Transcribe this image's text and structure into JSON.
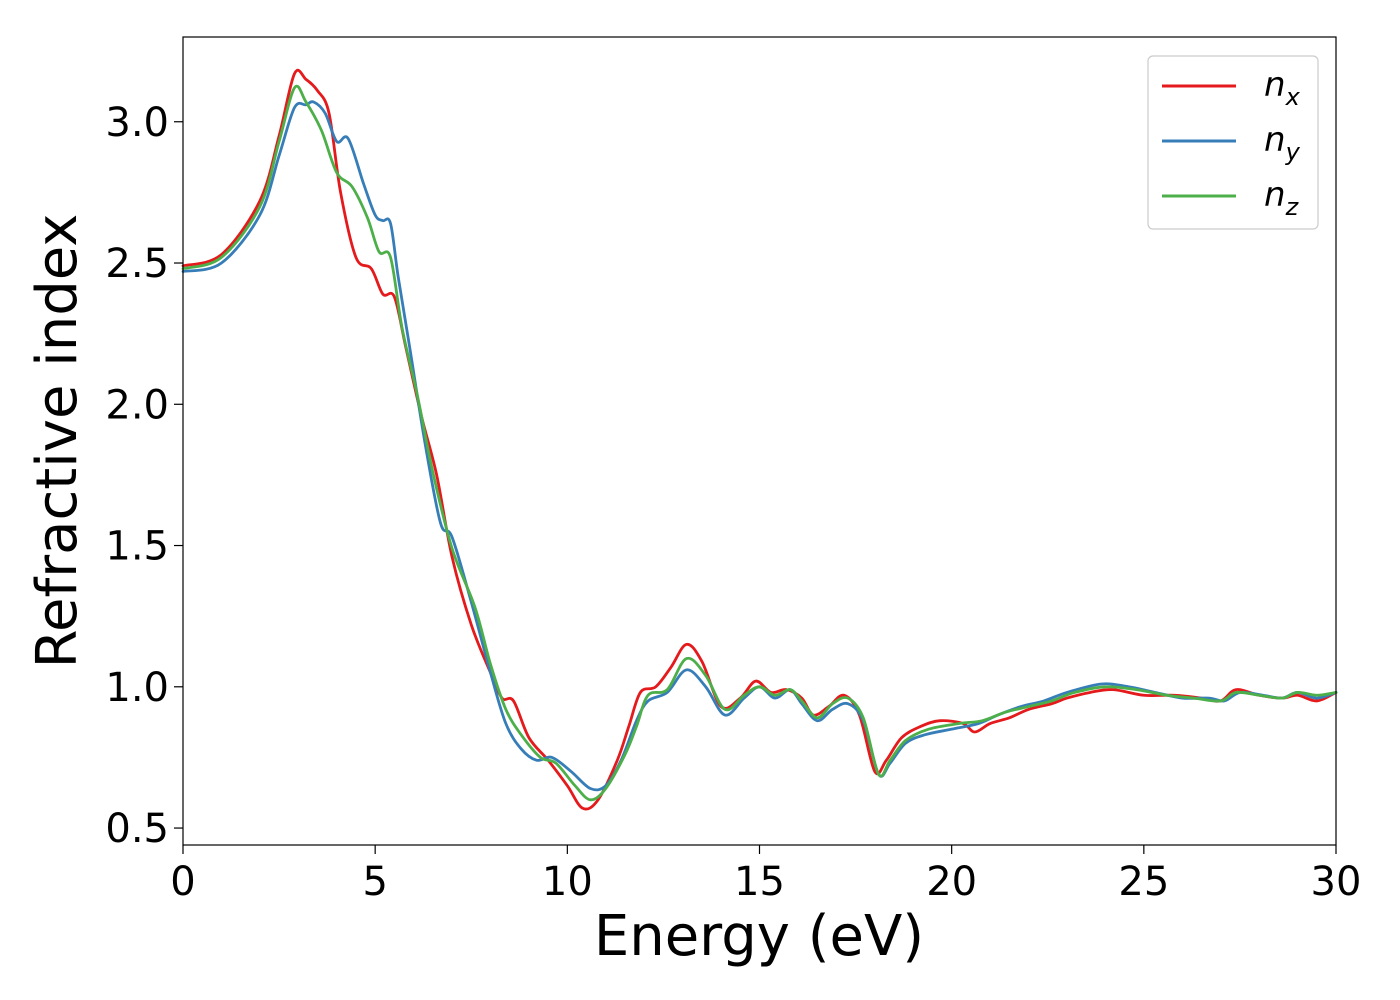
{
  "chart_data": {
    "type": "line",
    "xlabel": "Energy (eV)",
    "ylabel": "Refractive index",
    "xlim": [
      0,
      30
    ],
    "ylim": [
      0.44,
      3.3
    ],
    "xticks": [
      0,
      5,
      10,
      15,
      20,
      25,
      30
    ],
    "xtick_labels": [
      "0",
      "5",
      "10",
      "15",
      "20",
      "25",
      "30"
    ],
    "yticks": [
      0.5,
      1.0,
      1.5,
      2.0,
      2.5,
      3.0
    ],
    "ytick_labels": [
      "0.5",
      "1.0",
      "1.5",
      "2.0",
      "2.5",
      "3.0"
    ],
    "grid": false,
    "legend_position": "top-right",
    "series": [
      {
        "name": "n_x",
        "legend_main": "n",
        "legend_sub": "x",
        "color": "#e41a1c",
        "points": [
          [
            0,
            2.49
          ],
          [
            1,
            2.53
          ],
          [
            2,
            2.72
          ],
          [
            2.5,
            2.95
          ],
          [
            2.9,
            3.17
          ],
          [
            3.2,
            3.15
          ],
          [
            3.5,
            3.11
          ],
          [
            3.8,
            3.03
          ],
          [
            4.1,
            2.75
          ],
          [
            4.5,
            2.52
          ],
          [
            4.9,
            2.48
          ],
          [
            5.2,
            2.39
          ],
          [
            5.5,
            2.38
          ],
          [
            5.8,
            2.2
          ],
          [
            6.2,
            1.96
          ],
          [
            6.6,
            1.75
          ],
          [
            7,
            1.46
          ],
          [
            7.5,
            1.22
          ],
          [
            8,
            1.05
          ],
          [
            8.3,
            0.96
          ],
          [
            8.6,
            0.95
          ],
          [
            9,
            0.82
          ],
          [
            9.5,
            0.74
          ],
          [
            10,
            0.65
          ],
          [
            10.4,
            0.57
          ],
          [
            10.8,
            0.6
          ],
          [
            11.3,
            0.74
          ],
          [
            11.6,
            0.86
          ],
          [
            11.9,
            0.98
          ],
          [
            12.3,
            1.0
          ],
          [
            12.7,
            1.07
          ],
          [
            13.1,
            1.15
          ],
          [
            13.5,
            1.09
          ],
          [
            14,
            0.93
          ],
          [
            14.5,
            0.96
          ],
          [
            14.9,
            1.02
          ],
          [
            15.3,
            0.98
          ],
          [
            15.7,
            0.99
          ],
          [
            16.1,
            0.96
          ],
          [
            16.4,
            0.9
          ],
          [
            16.8,
            0.93
          ],
          [
            17.2,
            0.97
          ],
          [
            17.6,
            0.9
          ],
          [
            18,
            0.7
          ],
          [
            18.3,
            0.74
          ],
          [
            18.7,
            0.82
          ],
          [
            19.2,
            0.86
          ],
          [
            19.7,
            0.88
          ],
          [
            20.3,
            0.87
          ],
          [
            20.6,
            0.84
          ],
          [
            21,
            0.87
          ],
          [
            21.5,
            0.89
          ],
          [
            22,
            0.92
          ],
          [
            22.6,
            0.94
          ],
          [
            23,
            0.96
          ],
          [
            23.6,
            0.98
          ],
          [
            24.2,
            0.99
          ],
          [
            25,
            0.97
          ],
          [
            25.8,
            0.97
          ],
          [
            26.5,
            0.96
          ],
          [
            27,
            0.95
          ],
          [
            27.4,
            0.99
          ],
          [
            28,
            0.97
          ],
          [
            28.6,
            0.96
          ],
          [
            29,
            0.97
          ],
          [
            29.5,
            0.95
          ],
          [
            30,
            0.98
          ]
        ]
      },
      {
        "name": "n_y",
        "legend_main": "n",
        "legend_sub": "y",
        "color": "#377eb8",
        "points": [
          [
            0,
            2.47
          ],
          [
            1,
            2.5
          ],
          [
            2,
            2.67
          ],
          [
            2.5,
            2.88
          ],
          [
            2.9,
            3.05
          ],
          [
            3.2,
            3.06
          ],
          [
            3.4,
            3.07
          ],
          [
            3.7,
            3.03
          ],
          [
            4,
            2.93
          ],
          [
            4.3,
            2.94
          ],
          [
            4.7,
            2.78
          ],
          [
            5,
            2.67
          ],
          [
            5.2,
            2.65
          ],
          [
            5.4,
            2.64
          ],
          [
            5.6,
            2.45
          ],
          [
            5.9,
            2.2
          ],
          [
            6.3,
            1.86
          ],
          [
            6.7,
            1.58
          ],
          [
            7,
            1.53
          ],
          [
            7.5,
            1.3
          ],
          [
            8,
            1.05
          ],
          [
            8.4,
            0.87
          ],
          [
            8.8,
            0.78
          ],
          [
            9.2,
            0.74
          ],
          [
            9.6,
            0.75
          ],
          [
            10.1,
            0.7
          ],
          [
            10.6,
            0.64
          ],
          [
            11,
            0.65
          ],
          [
            11.4,
            0.74
          ],
          [
            11.8,
            0.88
          ],
          [
            12.1,
            0.95
          ],
          [
            12.6,
            0.98
          ],
          [
            13.1,
            1.06
          ],
          [
            13.6,
            1.0
          ],
          [
            14.1,
            0.9
          ],
          [
            14.6,
            0.96
          ],
          [
            15,
            1.0
          ],
          [
            15.4,
            0.96
          ],
          [
            15.8,
            0.99
          ],
          [
            16.1,
            0.94
          ],
          [
            16.5,
            0.88
          ],
          [
            16.9,
            0.92
          ],
          [
            17.3,
            0.94
          ],
          [
            17.7,
            0.88
          ],
          [
            18.1,
            0.69
          ],
          [
            18.4,
            0.73
          ],
          [
            18.8,
            0.8
          ],
          [
            19.3,
            0.83
          ],
          [
            20,
            0.85
          ],
          [
            20.7,
            0.87
          ],
          [
            21.2,
            0.9
          ],
          [
            21.8,
            0.93
          ],
          [
            22.4,
            0.95
          ],
          [
            23,
            0.98
          ],
          [
            23.9,
            1.01
          ],
          [
            24.6,
            1.0
          ],
          [
            25.3,
            0.98
          ],
          [
            26,
            0.96
          ],
          [
            26.7,
            0.96
          ],
          [
            27.1,
            0.95
          ],
          [
            27.5,
            0.98
          ],
          [
            28.1,
            0.97
          ],
          [
            28.6,
            0.96
          ],
          [
            29,
            0.98
          ],
          [
            29.5,
            0.96
          ],
          [
            30,
            0.98
          ]
        ]
      },
      {
        "name": "n_z",
        "legend_main": "n",
        "legend_sub": "z",
        "color": "#4daf4a",
        "points": [
          [
            0,
            2.48
          ],
          [
            1,
            2.52
          ],
          [
            2,
            2.7
          ],
          [
            2.5,
            2.93
          ],
          [
            2.9,
            3.12
          ],
          [
            3.2,
            3.07
          ],
          [
            3.6,
            2.97
          ],
          [
            4,
            2.82
          ],
          [
            4.4,
            2.77
          ],
          [
            4.8,
            2.66
          ],
          [
            5.1,
            2.54
          ],
          [
            5.4,
            2.52
          ],
          [
            5.7,
            2.27
          ],
          [
            6.1,
            2.03
          ],
          [
            6.5,
            1.76
          ],
          [
            7,
            1.49
          ],
          [
            7.6,
            1.28
          ],
          [
            8,
            1.08
          ],
          [
            8.4,
            0.92
          ],
          [
            8.8,
            0.83
          ],
          [
            9.3,
            0.75
          ],
          [
            9.7,
            0.73
          ],
          [
            10.2,
            0.65
          ],
          [
            10.6,
            0.6
          ],
          [
            11,
            0.64
          ],
          [
            11.5,
            0.76
          ],
          [
            11.8,
            0.86
          ],
          [
            12.1,
            0.97
          ],
          [
            12.6,
            0.99
          ],
          [
            13.1,
            1.1
          ],
          [
            13.6,
            1.04
          ],
          [
            14.1,
            0.92
          ],
          [
            14.6,
            0.97
          ],
          [
            15,
            1.0
          ],
          [
            15.4,
            0.97
          ],
          [
            15.8,
            0.99
          ],
          [
            16.1,
            0.95
          ],
          [
            16.5,
            0.89
          ],
          [
            16.9,
            0.94
          ],
          [
            17.3,
            0.96
          ],
          [
            17.7,
            0.89
          ],
          [
            18.1,
            0.69
          ],
          [
            18.4,
            0.74
          ],
          [
            18.8,
            0.81
          ],
          [
            19.4,
            0.85
          ],
          [
            20.2,
            0.87
          ],
          [
            20.8,
            0.88
          ],
          [
            21.4,
            0.91
          ],
          [
            22,
            0.93
          ],
          [
            22.6,
            0.95
          ],
          [
            23.2,
            0.98
          ],
          [
            24,
            1.0
          ],
          [
            24.8,
            0.99
          ],
          [
            25.6,
            0.97
          ],
          [
            26.3,
            0.96
          ],
          [
            27,
            0.95
          ],
          [
            27.4,
            0.98
          ],
          [
            28,
            0.97
          ],
          [
            28.6,
            0.96
          ],
          [
            29,
            0.98
          ],
          [
            29.5,
            0.97
          ],
          [
            30,
            0.98
          ]
        ]
      }
    ]
  }
}
